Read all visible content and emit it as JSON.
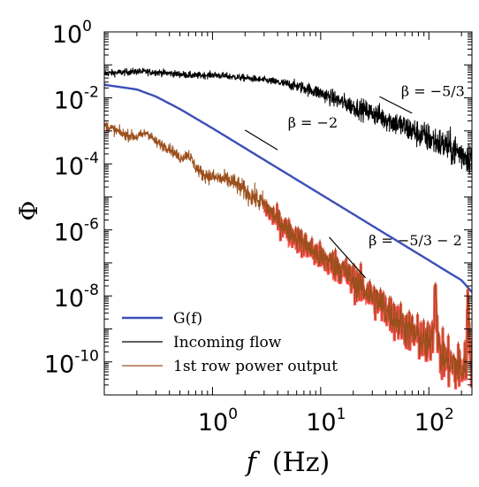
{
  "chart_data": {
    "type": "line",
    "xscale": "log",
    "yscale": "log",
    "xlim": [
      0.1,
      250
    ],
    "ylim": [
      1e-11,
      1
    ],
    "grid": false,
    "legend_position": "bottom-left",
    "x_ticks": [
      {
        "base": "10",
        "exp": "0",
        "value": 1
      },
      {
        "base": "10",
        "exp": "1",
        "value": 10
      },
      {
        "base": "10",
        "exp": "2",
        "value": 100
      }
    ],
    "y_ticks": [
      {
        "base": "10",
        "exp": "0",
        "value": 1
      },
      {
        "base": "10",
        "exp": "-2",
        "value": 0.01
      },
      {
        "base": "10",
        "exp": "-4",
        "value": 0.0001
      },
      {
        "base": "10",
        "exp": "-6",
        "value": 1e-06
      },
      {
        "base": "10",
        "exp": "-8",
        "value": 1e-08
      },
      {
        "base": "10",
        "exp": "-10",
        "value": 1e-10
      }
    ],
    "xlabel_symbol": "f",
    "xlabel_unit": "(Hz)",
    "ylabel": "Φ",
    "series": [
      {
        "name": "G(f)",
        "color": "#3a4fb8",
        "x": [
          0.1,
          0.2,
          0.3,
          0.5,
          0.7,
          1,
          2,
          3,
          5,
          7,
          10,
          20,
          30,
          50,
          70,
          100,
          150,
          200,
          250
        ],
        "y": [
          0.025,
          0.018,
          0.011,
          0.0046,
          0.0024,
          0.0012,
          0.0003,
          0.000133,
          4.8e-05,
          2.45e-05,
          1.2e-05,
          3e-06,
          1.33e-06,
          4.8e-07,
          2.45e-07,
          1.2e-07,
          5.3e-08,
          3e-08,
          1.3e-08
        ]
      },
      {
        "name": "Incoming flow",
        "color": "#000000",
        "x": [
          0.1,
          0.2,
          0.3,
          0.5,
          0.7,
          1,
          2,
          3,
          5,
          7,
          10,
          15,
          20,
          30,
          50,
          70,
          100,
          150,
          200,
          250
        ],
        "y": [
          0.055,
          0.063,
          0.06,
          0.052,
          0.047,
          0.05,
          0.04,
          0.035,
          0.026,
          0.02,
          0.014,
          0.008,
          0.0055,
          0.0035,
          0.0017,
          0.001,
          0.0006,
          0.00033,
          0.0002,
          0.00016
        ]
      },
      {
        "name": "1st row power output",
        "color": "#9b4f1c",
        "x": [
          0.1,
          0.15,
          0.2,
          0.25,
          0.3,
          0.4,
          0.5,
          0.6,
          0.7,
          0.8,
          1,
          1.5,
          2,
          3,
          4,
          5,
          7,
          10,
          15,
          20,
          30,
          50,
          70,
          100,
          110,
          115,
          120,
          125,
          130,
          150,
          200,
          220,
          230,
          240,
          250
        ],
        "y": [
          0.0015,
          0.0008,
          0.00065,
          0.0009,
          0.00045,
          0.0003,
          0.00015,
          0.0002,
          8e-05,
          5e-05,
          4e-05,
          3e-05,
          1.5e-05,
          6e-06,
          2e-06,
          1e-06,
          4e-07,
          1.5e-07,
          8e-08,
          3e-08,
          1e-08,
          2e-09,
          8e-10,
          3e-10,
          1e-09,
          3e-08,
          1e-09,
          2e-10,
          1.5e-10,
          1e-10,
          6e-11,
          8e-11,
          1e-08,
          3e-10,
          1e-10
        ]
      }
    ],
    "slope_guides": [
      {
        "label": "β = −5/3",
        "x": [
          35,
          70
        ]
      },
      {
        "label": "β = −2",
        "x": [
          2.0,
          4.0
        ]
      },
      {
        "label": "β = −5/3 − 2",
        "x": [
          12,
          26
        ]
      }
    ]
  },
  "legend": {
    "items": [
      {
        "label": "G(f)",
        "color": "#3a4fb8",
        "width": 2.5
      },
      {
        "label": "Incoming flow",
        "color": "#000000",
        "width": 1.2
      },
      {
        "label": "1st row power output",
        "color": "#9b4f1c",
        "width": 1.2
      }
    ]
  }
}
